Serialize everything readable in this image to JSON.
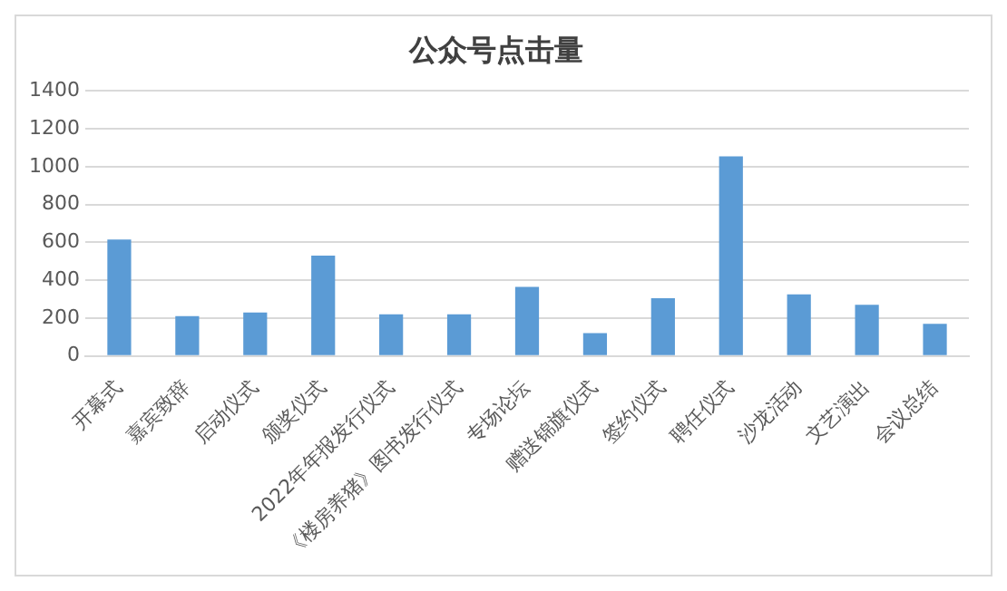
{
  "chart_data": {
    "type": "bar",
    "title": "公众号点击量",
    "categories": [
      "开幕式",
      "嘉宾致辞",
      "启动仪式",
      "颁奖仪式",
      "2022年年报发行仪式",
      "《楼房养猪》图书发行仪式",
      "专场论坛",
      "赠送锦旗仪式",
      "签约仪式",
      "聘任仪式",
      "沙龙活动",
      "文艺演出",
      "会议总结"
    ],
    "values": [
      615,
      210,
      230,
      530,
      220,
      220,
      365,
      120,
      305,
      1055,
      325,
      270,
      170
    ],
    "color": "#5b9bd5",
    "ylim": [
      0,
      1400
    ],
    "yticks": [
      0,
      200,
      400,
      600,
      800,
      1000,
      1200,
      1400
    ],
    "grid": "y"
  }
}
